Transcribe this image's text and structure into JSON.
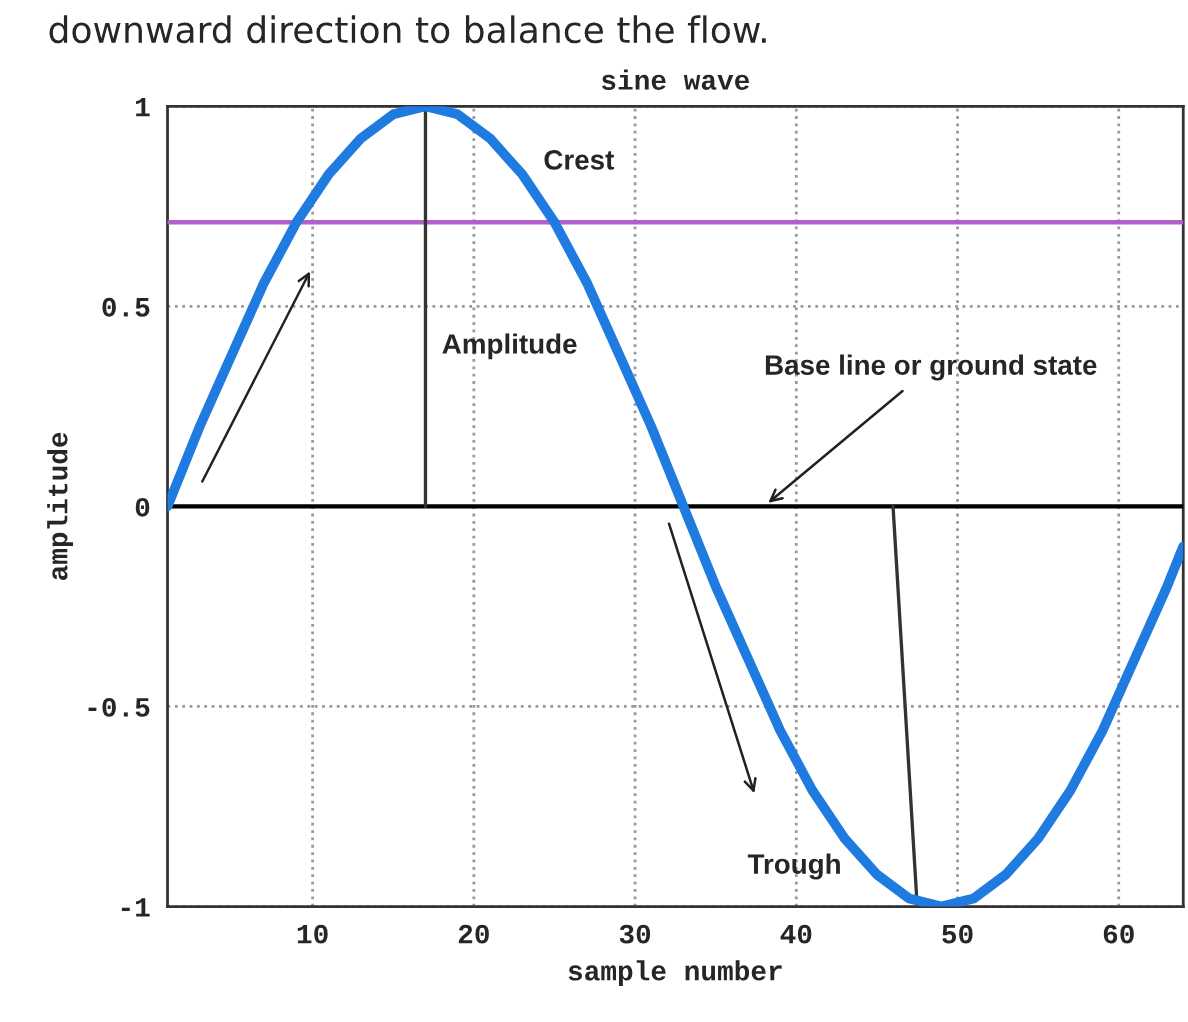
{
  "chart_data": {
    "type": "line",
    "title": "sine wave",
    "xlabel": "sample number",
    "ylabel": "amplitude",
    "x": [
      1,
      3,
      5,
      7,
      9,
      11,
      13,
      15,
      17,
      19,
      21,
      23,
      25,
      27,
      29,
      31,
      33,
      35,
      37,
      39,
      41,
      43,
      45,
      47,
      49,
      51,
      53,
      55,
      57,
      59,
      61,
      63,
      64
    ],
    "series": [
      {
        "type": "line",
        "x": [
          17,
          17
        ],
        "values": [
          0,
          1
        ],
        "color": "#333333"
      },
      {
        "type": "line",
        "x": [
          46,
          47.5
        ],
        "values": [
          0,
          -1
        ],
        "color": "#333333"
      },
      {
        "color": "#1f7be0",
        "values": [
          0,
          0.2,
          0.38,
          0.56,
          0.71,
          0.83,
          0.92,
          0.98,
          1,
          0.98,
          0.92,
          0.83,
          0.71,
          0.56,
          0.38,
          0.2,
          0,
          -0.2,
          -0.38,
          -0.56,
          -0.71,
          -0.83,
          -0.92,
          -0.98,
          -1,
          -0.98,
          -0.92,
          -0.83,
          -0.71,
          -0.56,
          -0.38,
          -0.2,
          -0.1
        ]
      }
    ],
    "xlim": [
      1,
      64
    ],
    "ylim": [
      -1,
      1
    ],
    "xticks": [
      10,
      20,
      30,
      40,
      50,
      60
    ],
    "yticks": [
      {
        "value": -1,
        "label": "-1"
      },
      {
        "value": -0.5,
        "label": "-0.5"
      },
      0,
      {
        "value": 0.5,
        "label": "0.5"
      },
      1
    ],
    "grid": true,
    "marker": "none",
    "line_style": "solid",
    "ref_lines": [
      {
        "axis": "y",
        "value": 0.71,
        "color": "#b060c8"
      },
      {
        "axis": "y",
        "value": 0,
        "color": "#000000"
      }
    ],
    "annotations": [
      "downward direction to balance the flow.",
      "Crest",
      "Amplitude",
      {
        "text": "Base line or ground state",
        "x": 38,
        "y": 0
      },
      "Trough"
    ]
  }
}
